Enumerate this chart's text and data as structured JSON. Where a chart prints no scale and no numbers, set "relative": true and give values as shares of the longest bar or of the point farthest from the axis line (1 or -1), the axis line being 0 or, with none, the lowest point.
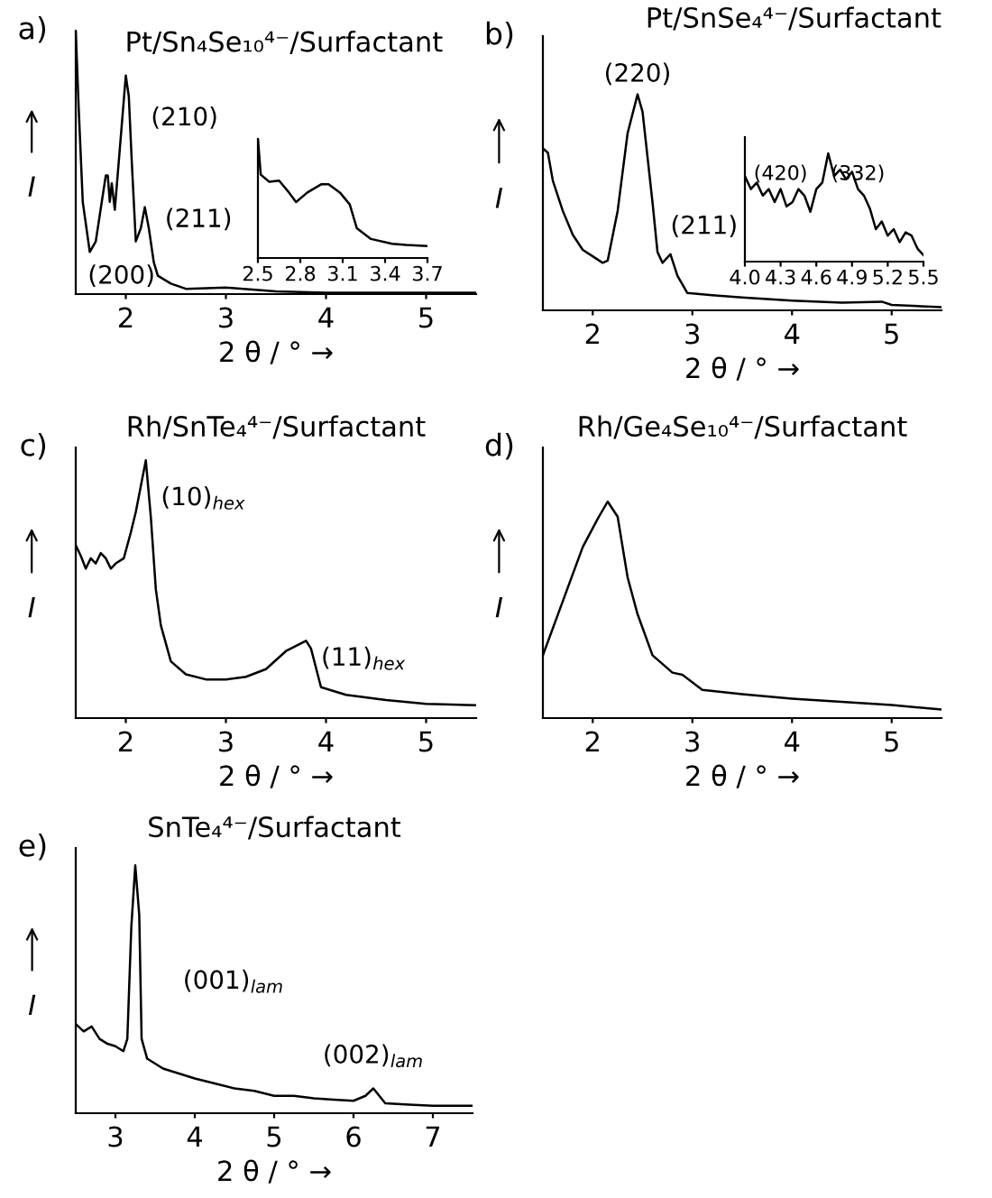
{
  "chart_data": [
    {
      "type": "line",
      "title": "Pt/Sn₄Se₁₀⁴⁻/Surfactant",
      "xlabel": "2 θ / ° →",
      "ylabel": "I",
      "relative": true,
      "tick_labels": "x",
      "xlim": [
        1.5,
        5.5
      ],
      "xticks": [
        2,
        3,
        4,
        5
      ],
      "annotations": [
        "a)",
        "(200)",
        {
          "text": "(210)",
          "x": 2.0,
          "y": 0.83
        },
        {
          "text": "(211)",
          "x": 2.19,
          "y": 0.33
        }
      ],
      "x": [
        1.5,
        1.53,
        1.57,
        1.64,
        1.7,
        1.76,
        1.8,
        1.82,
        1.84,
        1.86,
        1.89,
        1.94,
        2.0,
        2.03,
        2.06,
        2.1,
        2.15,
        2.19,
        2.23,
        2.28,
        2.32,
        2.45,
        2.6,
        3.0,
        3.5,
        4.0,
        5.5
      ],
      "series": [
        {
          "color": "#000000",
          "values": [
            1.0,
            0.7,
            0.35,
            0.16,
            0.2,
            0.35,
            0.45,
            0.45,
            0.35,
            0.42,
            0.32,
            0.55,
            0.83,
            0.75,
            0.5,
            0.2,
            0.25,
            0.33,
            0.25,
            0.12,
            0.07,
            0.04,
            0.02,
            0.025,
            0.01,
            0.005,
            0.005
          ]
        }
      ]
    },
    {
      "type": "line",
      "relative": true,
      "tick_labels": "x",
      "xlim": [
        2.5,
        3.7
      ],
      "xticks": [
        2.5,
        2.8,
        3.1,
        3.4,
        3.7
      ],
      "x": [
        2.5,
        2.52,
        2.58,
        2.65,
        2.72,
        2.77,
        2.85,
        2.95,
        3.0,
        3.08,
        3.15,
        3.2,
        3.3,
        3.45,
        3.55,
        3.7
      ],
      "series": [
        {
          "color": "#000000",
          "values": [
            1.0,
            0.7,
            0.64,
            0.65,
            0.55,
            0.47,
            0.55,
            0.62,
            0.62,
            0.55,
            0.45,
            0.25,
            0.16,
            0.12,
            0.11,
            0.1
          ]
        }
      ]
    },
    {
      "type": "line",
      "title": "Pt/SnSe₄⁴⁻/Surfactant",
      "xlabel": "2 θ / ° →",
      "ylabel": "I",
      "relative": true,
      "tick_labels": "x",
      "xlim": [
        1.5,
        5.5
      ],
      "xticks": [
        2,
        3,
        4,
        5
      ],
      "annotations": [
        "b)",
        {
          "text": "(220)",
          "x": 2.45,
          "y": 1.0
        },
        {
          "text": "(211)",
          "x": 2.78,
          "y": 0.26
        }
      ],
      "x": [
        1.5,
        1.55,
        1.6,
        1.7,
        1.8,
        1.9,
        2.0,
        2.1,
        2.15,
        2.25,
        2.35,
        2.45,
        2.5,
        2.6,
        2.65,
        2.7,
        2.78,
        2.85,
        2.95,
        3.2,
        3.5,
        4.0,
        4.5,
        4.9,
        5.0,
        5.5
      ],
      "series": [
        {
          "color": "#000000",
          "values": [
            0.75,
            0.73,
            0.6,
            0.46,
            0.35,
            0.28,
            0.25,
            0.22,
            0.23,
            0.46,
            0.82,
            1.0,
            0.92,
            0.5,
            0.27,
            0.22,
            0.26,
            0.16,
            0.08,
            0.07,
            0.06,
            0.045,
            0.035,
            0.04,
            0.025,
            0.015
          ]
        }
      ]
    },
    {
      "type": "line",
      "relative": true,
      "tick_labels": "x",
      "xlim": [
        4.0,
        5.5
      ],
      "xticks": [
        {
          "value": 4.0,
          "label": "4.0"
        },
        4.3,
        4.6,
        4.9,
        5.2,
        5.5
      ],
      "annotations": [
        {
          "text": "(420)",
          "x": 4.3,
          "y": 0.67
        },
        {
          "text": "(332)",
          "x": 4.95,
          "y": 0.67
        }
      ],
      "x": [
        4.0,
        4.05,
        4.1,
        4.15,
        4.2,
        4.25,
        4.3,
        4.35,
        4.4,
        4.45,
        4.5,
        4.55,
        4.6,
        4.65,
        4.7,
        4.75,
        4.8,
        4.85,
        4.9,
        4.95,
        5.0,
        5.05,
        5.1,
        5.15,
        5.2,
        5.25,
        5.3,
        5.35,
        5.4,
        5.45,
        5.5
      ],
      "series": [
        {
          "color": "#000000",
          "values": [
            0.79,
            0.67,
            0.73,
            0.61,
            0.67,
            0.55,
            0.67,
            0.51,
            0.55,
            0.67,
            0.61,
            0.46,
            0.67,
            0.73,
            1.0,
            0.79,
            0.85,
            0.76,
            0.83,
            0.67,
            0.61,
            0.49,
            0.3,
            0.37,
            0.24,
            0.3,
            0.18,
            0.27,
            0.24,
            0.12,
            0.06
          ]
        }
      ]
    },
    {
      "type": "line",
      "title": "Rh/SnTe₄⁴⁻/Surfactant",
      "xlabel": "2 θ / ° →",
      "ylabel": "I",
      "relative": true,
      "tick_labels": "x",
      "xlim": [
        1.5,
        5.5
      ],
      "xticks": [
        2,
        3,
        4,
        5
      ],
      "annotations": [
        "c)",
        {
          "text": "(10)$_{hex}$",
          "x": 2.2,
          "y": 1.0
        },
        {
          "text": "(11)$_{hex}$",
          "x": 3.8,
          "y": 0.3
        }
      ],
      "x": [
        1.5,
        1.55,
        1.6,
        1.65,
        1.7,
        1.75,
        1.8,
        1.85,
        1.9,
        1.98,
        2.05,
        2.1,
        2.2,
        2.25,
        2.3,
        2.35,
        2.45,
        2.6,
        2.8,
        3.0,
        3.2,
        3.4,
        3.6,
        3.8,
        3.85,
        3.95,
        4.2,
        4.6,
        5.0,
        5.5
      ],
      "series": [
        {
          "color": "#000000",
          "values": [
            0.67,
            0.63,
            0.58,
            0.62,
            0.6,
            0.64,
            0.62,
            0.58,
            0.6,
            0.62,
            0.72,
            0.8,
            1.0,
            0.78,
            0.5,
            0.36,
            0.22,
            0.17,
            0.15,
            0.15,
            0.16,
            0.19,
            0.26,
            0.3,
            0.27,
            0.12,
            0.09,
            0.07,
            0.055,
            0.05
          ]
        }
      ]
    },
    {
      "type": "line",
      "title": "Rh/Ge₄Se₁₀⁴⁻/Surfactant",
      "xlabel": "2 θ / ° →",
      "ylabel": "I",
      "relative": true,
      "tick_labels": "x",
      "xlim": [
        1.5,
        5.5
      ],
      "xticks": [
        2,
        3,
        4,
        5
      ],
      "annotations": [
        "d)"
      ],
      "x": [
        1.5,
        1.7,
        1.9,
        2.05,
        2.15,
        2.25,
        2.35,
        2.45,
        2.6,
        2.8,
        2.9,
        3.1,
        3.5,
        4.0,
        4.5,
        5.0,
        5.5
      ],
      "series": [
        {
          "color": "#000000",
          "values": [
            0.29,
            0.54,
            0.79,
            0.92,
            1.0,
            0.93,
            0.65,
            0.48,
            0.29,
            0.21,
            0.2,
            0.13,
            0.11,
            0.09,
            0.075,
            0.06,
            0.04
          ]
        }
      ]
    },
    {
      "type": "line",
      "title": "SnTe₄⁴⁻/Surfactant",
      "xlabel": "2 θ / ° →",
      "ylabel": "I",
      "relative": true,
      "tick_labels": "x",
      "xlim": [
        2.5,
        7.5
      ],
      "xticks": [
        3,
        4,
        5,
        6,
        7
      ],
      "annotations": [
        "e)",
        "(001)$_{lam}$",
        {
          "text": "(002)$_{lam}$",
          "x": 6.25,
          "y": 0.1
        }
      ],
      "x": [
        2.5,
        2.6,
        2.7,
        2.8,
        2.9,
        3.0,
        3.1,
        3.15,
        3.2,
        3.25,
        3.3,
        3.33,
        3.4,
        3.6,
        3.8,
        4.0,
        4.25,
        4.5,
        4.75,
        5.0,
        5.25,
        5.5,
        5.75,
        6.0,
        6.15,
        6.25,
        6.4,
        6.7,
        7.0,
        7.5
      ],
      "series": [
        {
          "color": "#000000",
          "values": [
            0.36,
            0.33,
            0.35,
            0.3,
            0.28,
            0.27,
            0.25,
            0.3,
            0.75,
            1.0,
            0.8,
            0.3,
            0.22,
            0.18,
            0.16,
            0.14,
            0.12,
            0.1,
            0.09,
            0.07,
            0.07,
            0.06,
            0.055,
            0.05,
            0.07,
            0.1,
            0.04,
            0.035,
            0.03,
            0.03
          ]
        }
      ]
    }
  ]
}
